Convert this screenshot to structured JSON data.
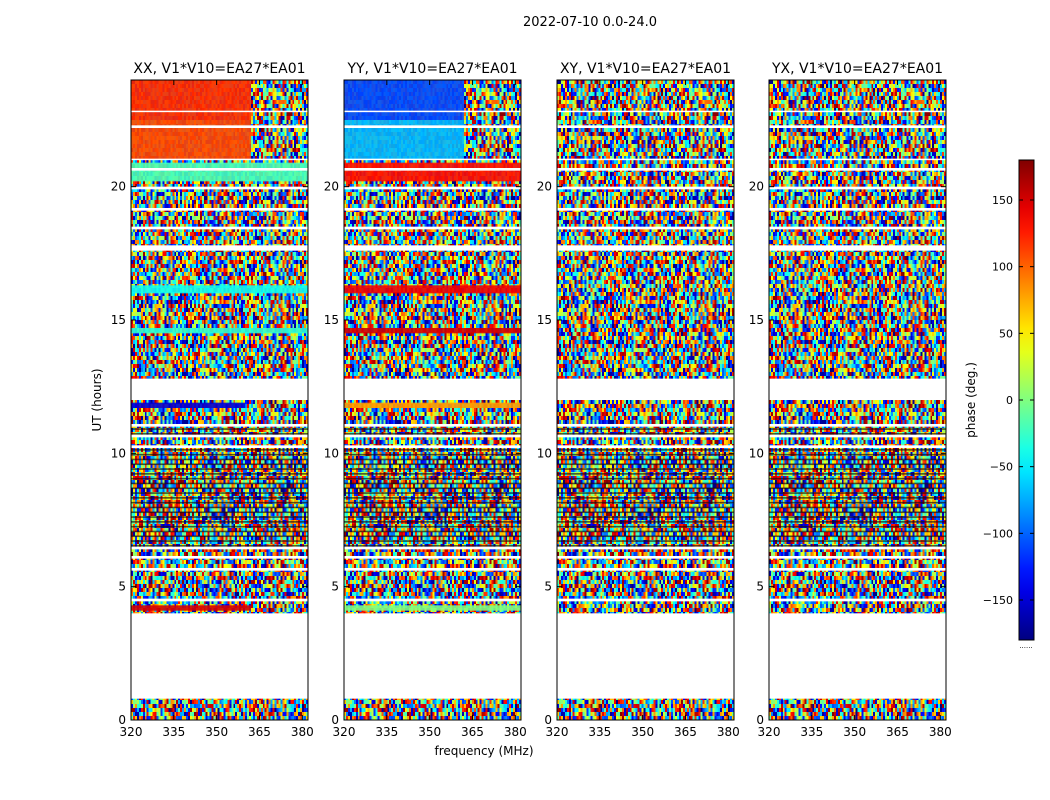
{
  "chart_data": {
    "type": "heatmap",
    "suptitle": "2022-07-10 0.0-24.0",
    "xlabel": "frequency (MHz)",
    "ylabel": "UT (hours)",
    "xlim": [
      320,
      382
    ],
    "ylim": [
      0,
      24
    ],
    "xticks": [
      320,
      335,
      350,
      365,
      380
    ],
    "yticks": [
      0,
      5,
      10,
      15,
      20
    ],
    "colorbar": {
      "label": "phase (deg.)",
      "range": [
        -180,
        180
      ],
      "ticks": [
        150,
        100,
        50,
        0,
        -50,
        -100,
        -150
      ],
      "colormap": "jet",
      "note": "......"
    },
    "panels": [
      {
        "title": "XX, V1*V10=EA27*EA01",
        "bands": [
          {
            "y": [
              22.5,
              24.0
            ],
            "phase": 120,
            "split_freq": 362,
            "right": "noise"
          },
          {
            "y": [
              21.0,
              22.5
            ],
            "phase": 110,
            "split_freq": 362,
            "right": "noise"
          },
          {
            "y": [
              20.2,
              20.9
            ],
            "phase": -20
          },
          {
            "y": [
              16.0,
              16.3
            ],
            "phase": -40
          },
          {
            "y": [
              14.5,
              14.7
            ],
            "phase": -30
          },
          {
            "y": [
              11.7,
              11.9
            ],
            "phase": -150,
            "split_freq": 360,
            "right": "noise"
          },
          {
            "y": [
              4.1,
              4.3
            ],
            "phase": 150,
            "split_freq": 362,
            "right": "noise"
          }
        ]
      },
      {
        "title": "YY, V1*V10=EA27*EA01",
        "bands": [
          {
            "y": [
              22.5,
              24.0
            ],
            "phase": -110,
            "split_freq": 362,
            "right": "noise"
          },
          {
            "y": [
              21.0,
              22.5
            ],
            "phase": -70,
            "split_freq": 362,
            "right": "noise"
          },
          {
            "y": [
              20.2,
              20.9
            ],
            "phase": 130
          },
          {
            "y": [
              16.0,
              16.3
            ],
            "phase": 140
          },
          {
            "y": [
              14.5,
              14.7
            ],
            "phase": 150
          },
          {
            "y": [
              11.7,
              11.9
            ],
            "phase": 80
          },
          {
            "y": [
              4.1,
              4.3
            ],
            "phase": 0
          }
        ]
      },
      {
        "title": "XY, V1*V10=EA27*EA01",
        "bands": []
      },
      {
        "title": "YX, V1*V10=EA27*EA01",
        "bands": []
      }
    ],
    "flagged_ut": [
      [
        0.8,
        4.0
      ],
      [
        12.0,
        12.8
      ],
      [
        4.45,
        4.55
      ],
      [
        5.6,
        5.7
      ],
      [
        6.05,
        6.15
      ],
      [
        6.4,
        6.5
      ],
      [
        10.2,
        10.3
      ],
      [
        10.6,
        10.7
      ],
      [
        11.0,
        11.1
      ],
      [
        17.6,
        17.8
      ],
      [
        18.4,
        18.5
      ],
      [
        19.1,
        19.2
      ],
      [
        19.9,
        20.0
      ],
      [
        20.6,
        20.7
      ],
      [
        21.0,
        21.05
      ],
      [
        22.2,
        22.3
      ],
      [
        22.8,
        22.85
      ]
    ],
    "dense_ut": [
      [
        6.5,
        10.2
      ],
      [
        10.7,
        11.0
      ]
    ]
  }
}
